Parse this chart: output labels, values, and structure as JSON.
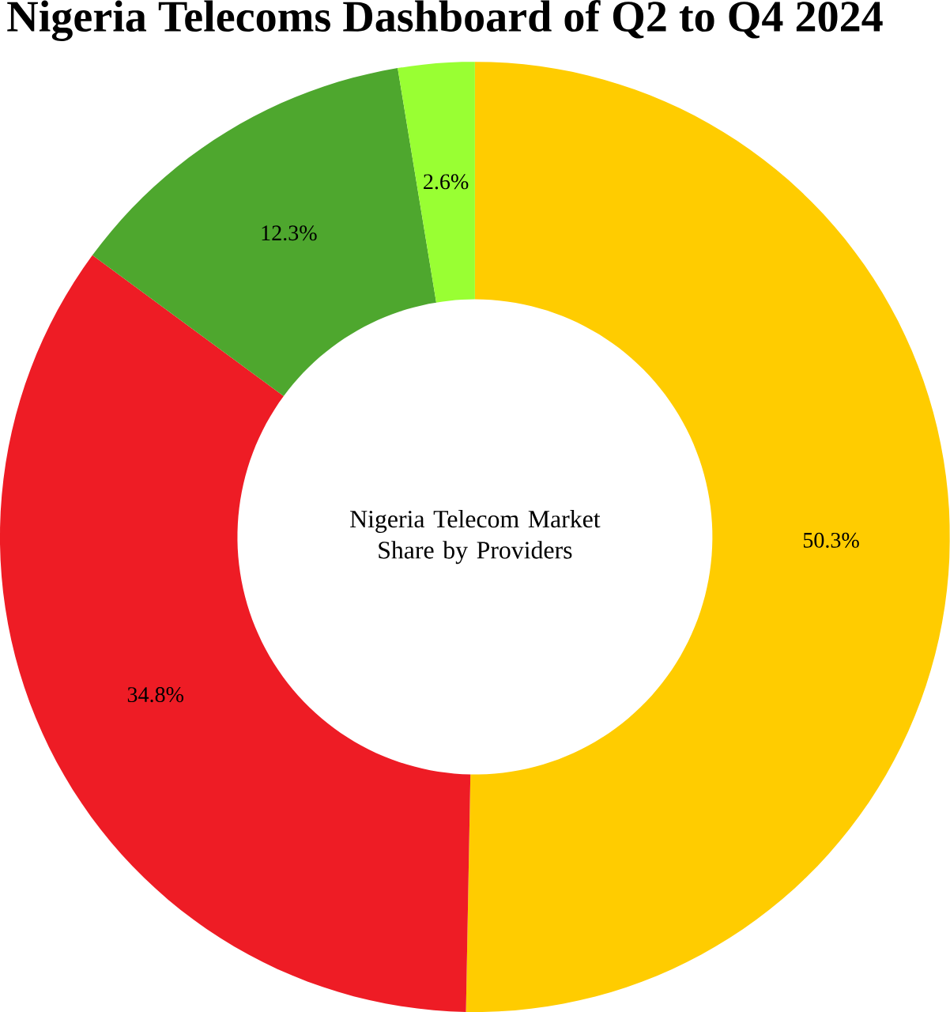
{
  "chart_data": {
    "type": "donut",
    "title": "Nigeria Telecoms Dashboard of Q2 to Q4 2024",
    "categories": [
      null,
      null,
      null,
      null
    ],
    "values": [
      50.3,
      34.8,
      12.3,
      2.6
    ],
    "colors": [
      "#ffcc00",
      "#ee1c25",
      "#4ea72e",
      "#99ff33"
    ],
    "value_labels": [
      "50.3%",
      "34.8%",
      "12.3%",
      "2.6%"
    ],
    "annotations": [
      "Nigeria Telecom Market Share by Providers"
    ]
  }
}
